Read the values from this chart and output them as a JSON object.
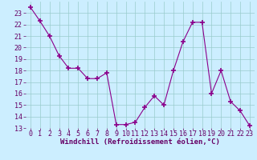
{
  "x": [
    0,
    1,
    2,
    3,
    4,
    5,
    6,
    7,
    8,
    9,
    10,
    11,
    12,
    13,
    14,
    15,
    16,
    17,
    18,
    19,
    20,
    21,
    22,
    23
  ],
  "y": [
    23.5,
    22.3,
    21.0,
    19.3,
    18.2,
    18.2,
    17.3,
    17.3,
    17.8,
    13.3,
    13.3,
    13.5,
    14.8,
    15.8,
    15.0,
    18.0,
    20.5,
    22.2,
    22.2,
    16.0,
    18.0,
    15.3,
    14.5,
    13.2
  ],
  "line_color": "#8b008b",
  "marker_color": "#8b008b",
  "bg_color": "#cceeff",
  "grid_color": "#99cccc",
  "xlabel": "Windchill (Refroidissement éolien,°C)",
  "xlim": [
    -0.5,
    23.5
  ],
  "ylim": [
    13,
    24
  ],
  "xticks": [
    0,
    1,
    2,
    3,
    4,
    5,
    6,
    7,
    8,
    9,
    10,
    11,
    12,
    13,
    14,
    15,
    16,
    17,
    18,
    19,
    20,
    21,
    22,
    23
  ],
  "yticks": [
    13,
    14,
    15,
    16,
    17,
    18,
    19,
    20,
    21,
    22,
    23
  ],
  "xlabel_fontsize": 6.5,
  "tick_fontsize": 6.0,
  "label_color": "#660066"
}
